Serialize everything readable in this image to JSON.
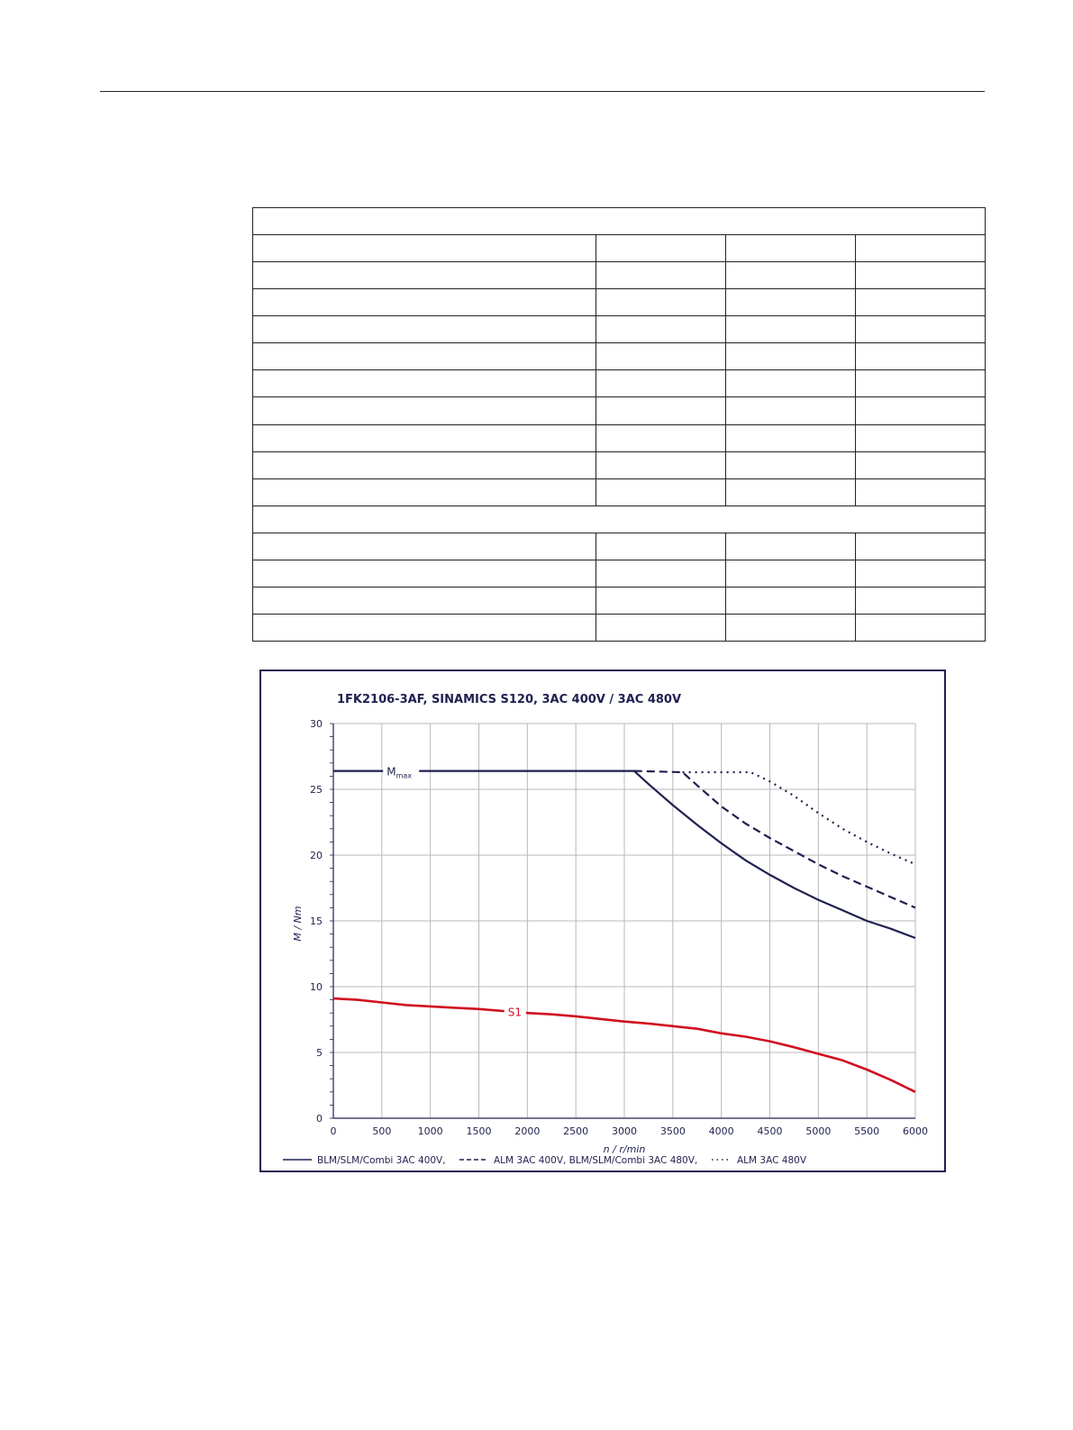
{
  "chart_data": {
    "type": "line",
    "title": "1FK2106-3AF,  SINAMICS S120,  3AC 400V / 3AC 480V",
    "xlabel": "n / r/min",
    "ylabel": "M / Nm",
    "xlim": [
      0,
      6000
    ],
    "ylim": [
      0,
      30
    ],
    "x_ticks": [
      "0",
      "500",
      "1000",
      "1500",
      "2000",
      "2500",
      "3000",
      "3500",
      "4000",
      "4500",
      "5000",
      "5500",
      "6000"
    ],
    "y_ticks": [
      "0",
      "5",
      "10",
      "15",
      "20",
      "25",
      "30"
    ],
    "grid": true,
    "legend_position": "bottom",
    "colors": {
      "dark": "#1f2050",
      "red": "#d01020",
      "grid": "#b8b8b8"
    },
    "series": [
      {
        "name": "BLM/SLM/Combi 3AC 400V,",
        "style": "solid",
        "color": "#1f2050",
        "points": [
          [
            0,
            26.4
          ],
          [
            3100,
            26.4
          ],
          [
            3250,
            25.4
          ],
          [
            3500,
            23.8
          ],
          [
            3750,
            22.3
          ],
          [
            4000,
            20.9
          ],
          [
            4250,
            19.6
          ],
          [
            4500,
            18.5
          ],
          [
            4750,
            17.5
          ],
          [
            5000,
            16.6
          ],
          [
            5250,
            15.8
          ],
          [
            5500,
            15.0
          ],
          [
            5750,
            14.4
          ],
          [
            6000,
            13.7
          ]
        ]
      },
      {
        "name": "ALM 3AC 400V, BLM/SLM/Combi 3AC 480V,",
        "style": "dashed",
        "color": "#1f2050",
        "points": [
          [
            3100,
            26.4
          ],
          [
            3600,
            26.3
          ],
          [
            3750,
            25.3
          ],
          [
            4000,
            23.7
          ],
          [
            4250,
            22.4
          ],
          [
            4500,
            21.3
          ],
          [
            4750,
            20.3
          ],
          [
            5000,
            19.3
          ],
          [
            5250,
            18.4
          ],
          [
            5500,
            17.6
          ],
          [
            5750,
            16.8
          ],
          [
            6000,
            16.0
          ]
        ]
      },
      {
        "name": "ALM 3AC 480V",
        "style": "dotted",
        "color": "#1f2050",
        "points": [
          [
            3600,
            26.3
          ],
          [
            4300,
            26.3
          ],
          [
            4500,
            25.6
          ],
          [
            4750,
            24.5
          ],
          [
            5000,
            23.2
          ],
          [
            5250,
            22.0
          ],
          [
            5500,
            21.0
          ],
          [
            5750,
            20.1
          ],
          [
            6000,
            19.3
          ]
        ]
      },
      {
        "style": "solid",
        "color": "#d01020",
        "points": [
          [
            0,
            9.1
          ],
          [
            250,
            9.0
          ],
          [
            500,
            8.8
          ],
          [
            750,
            8.6
          ],
          [
            1000,
            8.5
          ],
          [
            1250,
            8.4
          ],
          [
            1500,
            8.3
          ],
          [
            1750,
            8.15
          ],
          [
            2000,
            8.0
          ],
          [
            2250,
            7.9
          ],
          [
            2500,
            7.75
          ],
          [
            2750,
            7.55
          ],
          [
            3000,
            7.35
          ],
          [
            3250,
            7.2
          ],
          [
            3500,
            7.0
          ],
          [
            3750,
            6.8
          ],
          [
            4000,
            6.45
          ],
          [
            4250,
            6.2
          ],
          [
            4500,
            5.85
          ],
          [
            4750,
            5.4
          ],
          [
            5000,
            4.9
          ],
          [
            5250,
            4.4
          ],
          [
            5500,
            3.7
          ],
          [
            5750,
            2.9
          ],
          [
            6000,
            2.0
          ]
        ]
      }
    ],
    "annotations": [
      {
        "text": "M",
        "subscript": "max",
        "x": 550,
        "y": 26.4
      },
      {
        "text": "S1",
        "x": 1800,
        "y": 8.1
      }
    ],
    "legend": [
      {
        "label": "BLM/SLM/Combi 3AC 400V,",
        "style": "solid"
      },
      {
        "label": "ALM 3AC 400V, BLM/SLM/Combi 3AC 480V,",
        "style": "dashed"
      },
      {
        "label": "ALM 3AC 480V",
        "style": "dotted"
      }
    ]
  }
}
